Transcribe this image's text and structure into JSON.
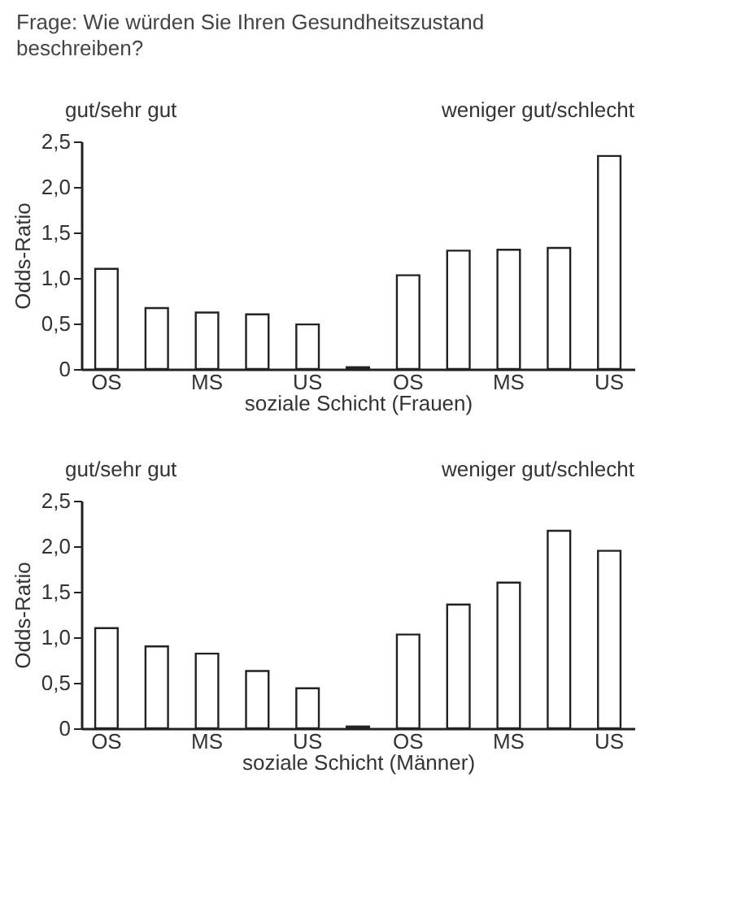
{
  "chart_data": [
    {
      "type": "bar",
      "title": "Frage: Wie würden Sie Ihren Gesundheitszustand beschreiben?",
      "xlabel": "soziale Schicht (Frauen)",
      "ylabel": "Odds-Ratio",
      "annotations": [
        "gut/sehr gut",
        "weniger gut/schlecht"
      ],
      "categories": [
        "OS",
        null,
        "MS",
        null,
        "US",
        null,
        "OS",
        null,
        "MS",
        null,
        "US"
      ],
      "values": [
        1.1,
        0.67,
        0.62,
        0.6,
        0.49,
        0.02,
        1.03,
        1.3,
        1.31,
        1.33,
        2.34
      ],
      "color": "#ffffff",
      "ylim": [
        0,
        2.5
      ],
      "yticks": [
        0,
        {
          "value": 0.5,
          "label": "0,5"
        },
        {
          "value": 1,
          "label": "1,0"
        },
        {
          "value": 1.5,
          "label": "1,5"
        },
        {
          "value": 2,
          "label": "2,0"
        },
        {
          "value": 2.5,
          "label": "2,5"
        }
      ]
    },
    {
      "type": "bar",
      "xlabel": "soziale Schicht (Männer)",
      "ylabel": "Odds-Ratio",
      "annotations": [
        "gut/sehr gut",
        "weniger gut/schlecht"
      ],
      "categories": [
        "OS",
        null,
        "MS",
        null,
        "US",
        null,
        "OS",
        null,
        "MS",
        null,
        "US"
      ],
      "values": [
        1.1,
        0.9,
        0.82,
        0.63,
        0.44,
        0.02,
        1.03,
        1.36,
        1.6,
        2.17,
        1.95
      ],
      "color": "#ffffff",
      "ylim": [
        0,
        2.5
      ],
      "yticks": [
        0,
        {
          "value": 0.5,
          "label": "0,5"
        },
        {
          "value": 1,
          "label": "1,0"
        },
        {
          "value": 1.5,
          "label": "1,5"
        },
        {
          "value": 2,
          "label": "2,0"
        },
        {
          "value": 2.5,
          "label": "2,5"
        }
      ]
    }
  ]
}
